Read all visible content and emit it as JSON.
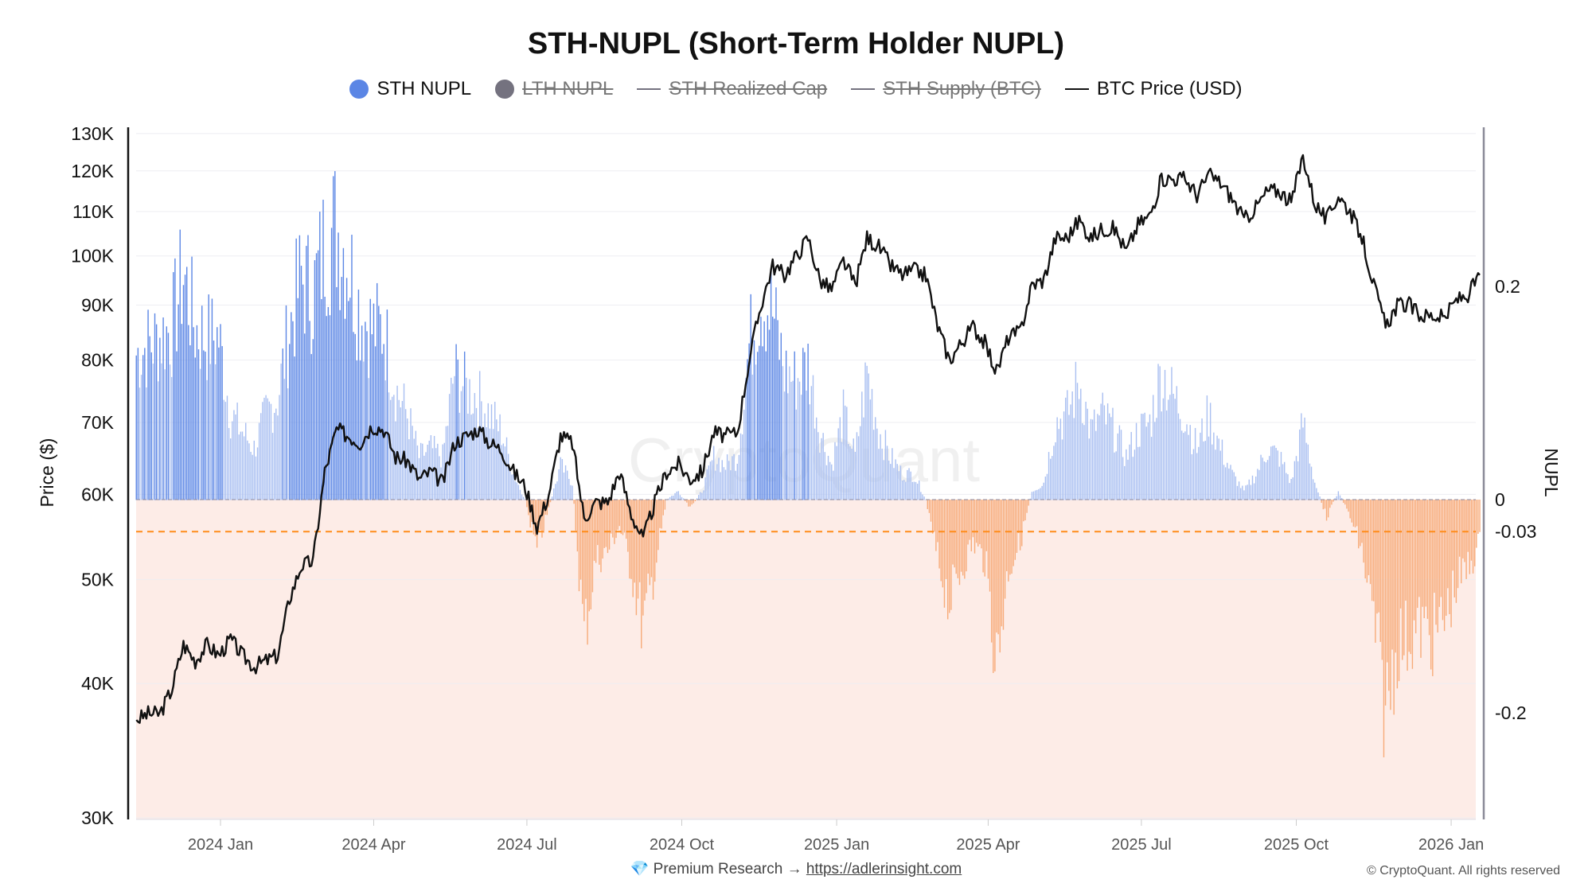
{
  "chart_data": {
    "type": "bar+line",
    "title": "STH-NUPL (Short-Term Holder NUPL)",
    "legend": [
      {
        "label": "STH NUPL",
        "color": "#5b86e5",
        "marker": "dot",
        "active": true
      },
      {
        "label": "LTH NUPL",
        "color": "#74727f",
        "marker": "dot",
        "active": false
      },
      {
        "label": "STH Realized Cap",
        "color": "#74727f",
        "marker": "line",
        "active": false
      },
      {
        "label": "STH Supply (BTC)",
        "color": "#74727f",
        "marker": "line",
        "active": false
      },
      {
        "label": "BTC Price (USD)",
        "color": "#111111",
        "marker": "line",
        "active": true
      }
    ],
    "left_axis": {
      "label": "Price ($)",
      "scale": "log",
      "range": [
        30000,
        130000
      ],
      "ticks": [
        {
          "v": 30000,
          "t": "30K"
        },
        {
          "v": 40000,
          "t": "40K"
        },
        {
          "v": 50000,
          "t": "50K"
        },
        {
          "v": 60000,
          "t": "60K"
        },
        {
          "v": 70000,
          "t": "70K"
        },
        {
          "v": 80000,
          "t": "80K"
        },
        {
          "v": 90000,
          "t": "90K"
        },
        {
          "v": 100000,
          "t": "100K"
        },
        {
          "v": 110000,
          "t": "110K"
        },
        {
          "v": 120000,
          "t": "120K"
        },
        {
          "v": 130000,
          "t": "130K"
        }
      ]
    },
    "right_axis": {
      "label": "NUPL",
      "ticks": [
        {
          "v": 0.2,
          "t": "0.2"
        },
        {
          "v": 0,
          "t": "0"
        },
        {
          "v": -0.03,
          "t": "-0.03"
        },
        {
          "v": -0.2,
          "t": "-0.2"
        }
      ]
    },
    "threshold": {
      "value": -0.03,
      "color": "#ff8c1a"
    },
    "x_axis": {
      "ticks": [
        {
          "d": "2024-01-01",
          "t": "2024 Jan"
        },
        {
          "d": "2024-04-01",
          "t": "2024 Apr"
        },
        {
          "d": "2024-07-01",
          "t": "2024 Jul"
        },
        {
          "d": "2024-10-01",
          "t": "2024 Oct"
        },
        {
          "d": "2025-01-01",
          "t": "2025 Jan"
        },
        {
          "d": "2025-04-01",
          "t": "2025 Apr"
        },
        {
          "d": "2025-07-01",
          "t": "2025 Jul"
        },
        {
          "d": "2025-10-01",
          "t": "2025 Oct"
        },
        {
          "d": "2026-01-01",
          "t": "2026 Jan"
        }
      ]
    },
    "x_start": "2023-11-12",
    "x_step_days": 7,
    "btc_price": [
      37000,
      37500,
      37500,
      39500,
      43500,
      42000,
      43500,
      42500,
      44000,
      42500,
      41500,
      42000,
      42500,
      48000,
      51500,
      52000,
      63000,
      69000,
      68000,
      67000,
      69500,
      69000,
      65000,
      64500,
      62000,
      63000,
      61500,
      67000,
      68000,
      69000,
      67000,
      66000,
      63000,
      61000,
      56000,
      60000,
      68000,
      67000,
      57000,
      59000,
      59000,
      63000,
      57500,
      54500,
      59000,
      63000,
      64000,
      62000,
      63000,
      68500,
      68000,
      68500,
      80000,
      90000,
      98000,
      96000,
      100000,
      104000,
      95000,
      93000,
      99000,
      94000,
      104000,
      102000,
      98000,
      96000,
      97000,
      96000,
      86000,
      80000,
      83000,
      86000,
      83000,
      78000,
      84000,
      85000,
      94000,
      95000,
      104000,
      104000,
      108000,
      104000,
      106000,
      106000,
      101000,
      107000,
      109000,
      118000,
      118000,
      118000,
      114000,
      119000,
      117000,
      113000,
      108000,
      111000,
      115000,
      115000,
      112000,
      124000,
      112000,
      108000,
      114000,
      110000,
      104000,
      94000,
      86000,
      90000,
      90000,
      88000,
      88000,
      87500,
      91000,
      92000,
      96000
    ],
    "sth_nupl": [
      0.17,
      0.18,
      0.19,
      0.2,
      0.265,
      0.2,
      0.19,
      0.19,
      0.1,
      0.08,
      0.06,
      0.1,
      0.12,
      0.2,
      0.26,
      0.24,
      0.3,
      0.32,
      0.28,
      0.22,
      0.2,
      0.2,
      0.13,
      0.1,
      0.05,
      0.06,
      0.05,
      0.15,
      0.13,
      0.12,
      0.1,
      0.08,
      0.03,
      0.0,
      -0.06,
      -0.01,
      0.04,
      0.02,
      -0.16,
      -0.07,
      -0.06,
      -0.03,
      -0.08,
      -0.15,
      -0.08,
      0.0,
      0.01,
      -0.01,
      0.01,
      0.05,
      0.04,
      0.05,
      0.18,
      0.24,
      0.22,
      0.15,
      0.14,
      0.16,
      0.08,
      0.04,
      0.1,
      0.05,
      0.15,
      0.08,
      0.05,
      0.03,
      0.03,
      0.0,
      -0.07,
      -0.12,
      -0.08,
      -0.05,
      -0.07,
      -0.19,
      -0.08,
      -0.05,
      0.01,
      0.02,
      0.09,
      0.1,
      0.14,
      0.08,
      0.1,
      0.08,
      0.05,
      0.08,
      0.09,
      0.15,
      0.12,
      0.1,
      0.06,
      0.1,
      0.06,
      0.03,
      0.01,
      0.03,
      0.06,
      0.05,
      0.02,
      0.09,
      0.02,
      -0.02,
      0.01,
      -0.02,
      -0.06,
      -0.14,
      -0.25,
      -0.17,
      -0.16,
      -0.15,
      -0.16,
      -0.14,
      -0.1,
      -0.08,
      -0.05
    ],
    "colors": {
      "positive": "#5b86e5",
      "negative": "#f7ab79",
      "negative_bg": "#fdece7",
      "price": "#111111"
    }
  },
  "watermark": "CryptoQuant",
  "footer": {
    "icon": "gem-icon",
    "text": "💎 Premium Research → ",
    "link": "https://adlerinsight.com"
  },
  "copyright": "© CryptoQuant. All rights reserved"
}
